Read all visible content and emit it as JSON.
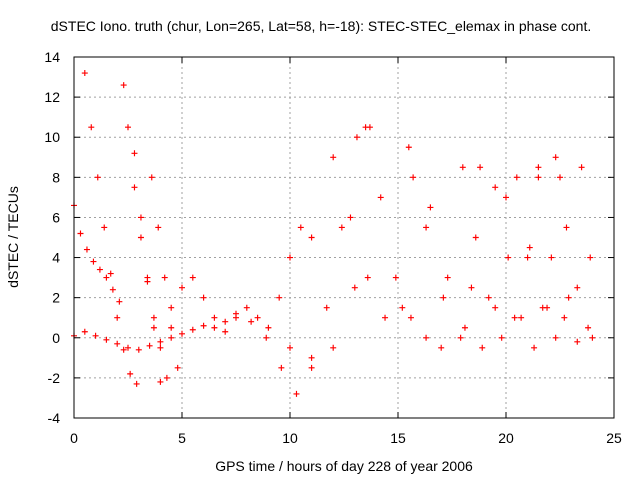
{
  "chart_data": {
    "type": "scatter",
    "title": "dSTEC Iono. truth (chur, Lon=265, Lat=58, h=-18): STEC-STEC_elemax in phase cont.",
    "xlabel": "GPS time / hours of day 228 of year 2006",
    "ylabel": "dSTEC  / TECUs",
    "xlim": [
      0,
      25
    ],
    "ylim": [
      -4,
      14
    ],
    "xticks": [
      0,
      5,
      10,
      15,
      20,
      25
    ],
    "yticks": [
      -4,
      -2,
      0,
      2,
      4,
      6,
      8,
      10,
      12,
      14
    ],
    "grid": true,
    "legend": "none",
    "marker": "+",
    "color": "#ff0000",
    "series": [
      {
        "x": [
          0.0,
          0.3,
          0.6,
          0.9,
          1.2,
          1.5,
          1.8,
          2.1
        ],
        "y": [
          6.6,
          5.2,
          4.4,
          3.8,
          3.4,
          3.0,
          2.4,
          1.8
        ]
      },
      {
        "x": [
          0.5,
          0.8,
          1.1,
          1.4,
          1.7,
          2.0,
          2.3,
          2.6,
          2.9
        ],
        "y": [
          13.2,
          10.5,
          8.0,
          5.5,
          3.2,
          1.0,
          -0.6,
          -1.8,
          -2.3
        ]
      },
      {
        "x": [
          2.3,
          2.5,
          2.8,
          3.1,
          3.4,
          3.7,
          4.0,
          4.3
        ],
        "y": [
          12.6,
          10.5,
          7.5,
          5.0,
          2.8,
          1.0,
          -0.5,
          -2.0
        ]
      },
      {
        "x": [
          2.8,
          3.1,
          3.4,
          3.7,
          4.0
        ],
        "y": [
          9.2,
          6.0,
          3.0,
          0.5,
          -2.2
        ]
      },
      {
        "x": [
          3.6,
          3.9,
          4.2,
          4.5,
          4.8
        ],
        "y": [
          8.0,
          5.5,
          3.0,
          0.5,
          -1.5
        ]
      },
      {
        "x": [
          0.0,
          0.5,
          1.0,
          1.5,
          2.0,
          2.5,
          3.0,
          3.5,
          4.0,
          4.5,
          5.0,
          5.5,
          6.0,
          6.5,
          7.0
        ],
        "y": [
          0.1,
          0.3,
          0.1,
          -0.1,
          -0.3,
          -0.5,
          -0.6,
          -0.4,
          -0.2,
          0.0,
          0.2,
          0.4,
          0.6,
          0.5,
          0.3
        ]
      },
      {
        "x": [
          4.5,
          5.0,
          5.5,
          6.0,
          6.5,
          7.0,
          7.5
        ],
        "y": [
          1.5,
          2.5,
          3.0,
          2.0,
          1.0,
          0.8,
          1.2
        ]
      },
      {
        "x": [
          8.0,
          8.5,
          9.0,
          9.5,
          10.0,
          10.5,
          11.0
        ],
        "y": [
          1.5,
          1.0,
          0.5,
          2.0,
          4.0,
          5.5,
          5.0
        ]
      },
      {
        "x": [
          7.5,
          8.2,
          8.9,
          9.6,
          10.3,
          11.0,
          11.7,
          12.4,
          13.1
        ],
        "y": [
          1.0,
          0.8,
          0.0,
          -1.5,
          -2.8,
          -1.5,
          1.5,
          5.5,
          10.0
        ]
      },
      {
        "x": [
          10.0,
          11.0,
          12.0,
          13.0,
          13.7
        ],
        "y": [
          -0.5,
          -1.0,
          -0.5,
          2.5,
          10.5
        ]
      },
      {
        "x": [
          12.0,
          12.8,
          13.6,
          14.4,
          15.2,
          15.7
        ],
        "y": [
          9.0,
          6.0,
          3.0,
          1.0,
          1.5,
          8.0
        ]
      },
      {
        "x": [
          13.5,
          14.2,
          14.9,
          15.6,
          16.3,
          17.0
        ],
        "y": [
          10.5,
          7.0,
          3.0,
          1.0,
          0.0,
          -0.5
        ]
      },
      {
        "x": [
          15.5,
          16.3,
          17.1,
          17.9,
          18.4,
          18.8
        ],
        "y": [
          9.5,
          5.5,
          2.0,
          0.0,
          2.5,
          8.5
        ]
      },
      {
        "x": [
          16.5,
          17.3,
          18.1,
          18.9,
          19.5,
          20.0
        ],
        "y": [
          6.5,
          3.0,
          0.5,
          -0.5,
          1.5,
          7.0
        ]
      },
      {
        "x": [
          18.0,
          18.6,
          19.2,
          19.8,
          20.4,
          21.0,
          21.5
        ],
        "y": [
          8.5,
          5.0,
          2.0,
          0.0,
          1.0,
          4.0,
          8.5
        ]
      },
      {
        "x": [
          19.5,
          20.1,
          20.7,
          21.3,
          21.9,
          22.5
        ],
        "y": [
          7.5,
          4.0,
          1.0,
          -0.5,
          1.5,
          8.0
        ]
      },
      {
        "x": [
          20.5,
          21.1,
          21.7,
          22.3,
          22.9,
          23.5
        ],
        "y": [
          8.0,
          4.5,
          1.5,
          0.0,
          2.0,
          8.5
        ]
      },
      {
        "x": [
          21.5,
          22.1,
          22.7,
          23.3,
          23.9
        ],
        "y": [
          8.0,
          4.0,
          1.0,
          -0.2,
          4.0
        ]
      },
      {
        "x": [
          22.3,
          22.8,
          23.3,
          23.8,
          24.0
        ],
        "y": [
          9.0,
          5.5,
          2.5,
          0.5,
          0.0
        ]
      }
    ]
  }
}
